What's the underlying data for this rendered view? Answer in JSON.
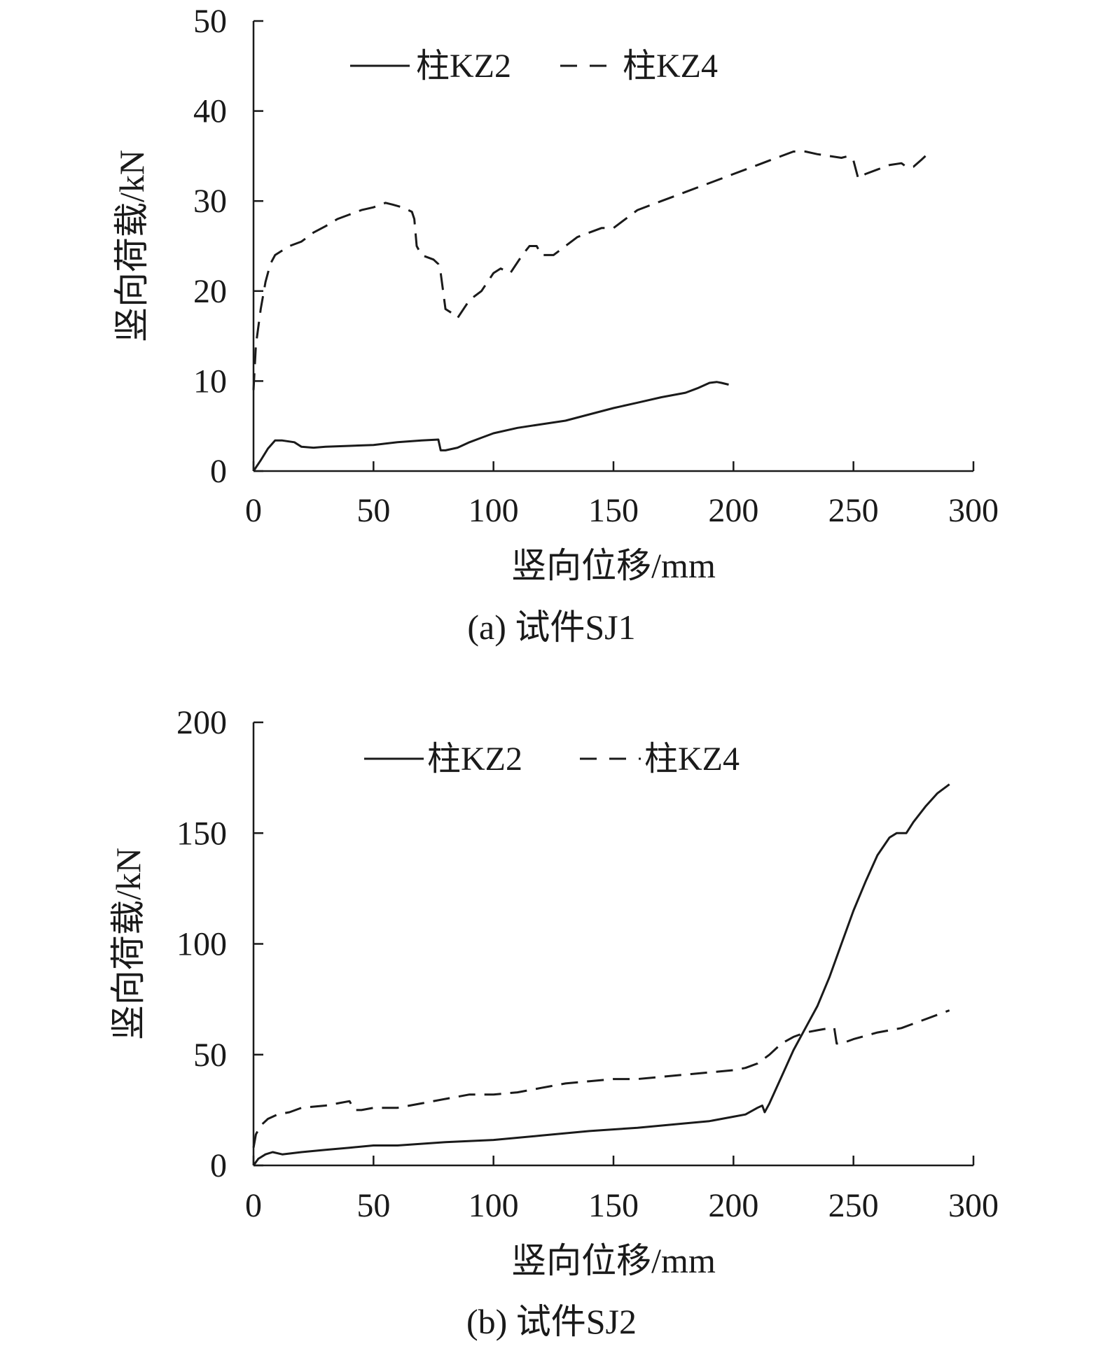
{
  "chart_data": [
    {
      "type": "line",
      "caption": "(a) 试件SJ1",
      "xlabel": "竖向位移/mm",
      "ylabel": "竖向荷载/kN",
      "xlim": [
        0,
        300
      ],
      "ylim": [
        0,
        50
      ],
      "xticks": [
        0,
        50,
        100,
        150,
        200,
        250,
        300
      ],
      "yticks": [
        0,
        10,
        20,
        30,
        40,
        50
      ],
      "legend_position": "top",
      "series": [
        {
          "name": "柱KZ2",
          "style": "solid",
          "color": "#1a1a1a",
          "x": [
            0,
            3,
            6,
            9,
            12,
            17,
            20,
            25,
            30,
            40,
            50,
            60,
            70,
            77,
            78,
            80,
            85,
            90,
            95,
            100,
            110,
            120,
            130,
            140,
            150,
            160,
            170,
            180,
            185,
            190,
            193,
            195,
            198
          ],
          "y": [
            0,
            1.2,
            2.5,
            3.4,
            3.4,
            3.2,
            2.7,
            2.6,
            2.7,
            2.8,
            2.9,
            3.2,
            3.4,
            3.5,
            2.3,
            2.3,
            2.6,
            3.2,
            3.7,
            4.2,
            4.8,
            5.2,
            5.6,
            6.3,
            7.0,
            7.6,
            8.2,
            8.7,
            9.2,
            9.8,
            9.9,
            9.8,
            9.6
          ]
        },
        {
          "name": "柱KZ4",
          "style": "dashed",
          "color": "#1a1a1a",
          "x": [
            0,
            1,
            3,
            5,
            7,
            9,
            12,
            15,
            20,
            25,
            30,
            35,
            40,
            45,
            50,
            55,
            58,
            62,
            66,
            67,
            68,
            70,
            75,
            77,
            78,
            80,
            83,
            85,
            90,
            95,
            100,
            103,
            107,
            112,
            115,
            118,
            120,
            125,
            130,
            135,
            140,
            145,
            150,
            155,
            160,
            165,
            170,
            175,
            180,
            185,
            190,
            195,
            200,
            205,
            210,
            215,
            220,
            225,
            230,
            235,
            240,
            245,
            248,
            250,
            252,
            255,
            260,
            265,
            270,
            272,
            275,
            278,
            280
          ],
          "y": [
            9,
            14,
            18,
            21,
            23,
            24,
            24.5,
            25,
            25.5,
            26.5,
            27.2,
            28,
            28.5,
            29,
            29.3,
            29.8,
            29.6,
            29.3,
            28.8,
            28,
            25,
            24,
            23.5,
            23,
            22,
            18,
            17.5,
            17,
            19,
            20,
            22,
            22.5,
            22,
            24,
            25,
            25,
            24,
            24,
            25,
            26,
            26.5,
            27,
            27,
            28,
            29,
            29.5,
            30,
            30.5,
            31,
            31.5,
            32,
            32.5,
            33,
            33.5,
            34,
            34.5,
            35,
            35.5,
            35.5,
            35.2,
            35,
            34.8,
            35,
            34.5,
            32.5,
            33,
            33.5,
            34,
            34.2,
            33.8,
            33.8,
            34.5,
            35
          ]
        }
      ]
    },
    {
      "type": "line",
      "caption": "(b) 试件SJ2",
      "xlabel": "竖向位移/mm",
      "ylabel": "竖向荷载/kN",
      "xlim": [
        0,
        300
      ],
      "ylim": [
        0,
        200
      ],
      "xticks": [
        0,
        50,
        100,
        150,
        200,
        250,
        300
      ],
      "yticks": [
        0,
        50,
        100,
        150,
        200
      ],
      "legend_position": "top",
      "series": [
        {
          "name": "柱KZ2",
          "style": "solid",
          "color": "#1a1a1a",
          "x": [
            0,
            2,
            5,
            8,
            12,
            20,
            30,
            40,
            50,
            60,
            80,
            100,
            120,
            140,
            160,
            180,
            190,
            200,
            205,
            210,
            212,
            213,
            215,
            220,
            225,
            230,
            235,
            240,
            245,
            250,
            255,
            260,
            265,
            268,
            272,
            275,
            280,
            285,
            290
          ],
          "y": [
            0,
            3,
            5,
            6,
            5,
            6,
            7,
            8,
            9,
            9,
            10.5,
            11.5,
            13.5,
            15.5,
            17,
            19,
            20,
            22,
            23,
            26,
            27,
            24,
            28,
            40,
            52,
            62,
            72,
            85,
            100,
            115,
            128,
            140,
            148,
            150,
            150,
            155,
            162,
            168,
            172
          ]
        },
        {
          "name": "柱KZ4",
          "style": "dashed",
          "color": "#1a1a1a",
          "x": [
            0,
            1,
            3,
            6,
            10,
            15,
            20,
            30,
            35,
            40,
            42,
            45,
            50,
            60,
            70,
            80,
            90,
            100,
            110,
            120,
            130,
            140,
            150,
            160,
            170,
            180,
            190,
            200,
            205,
            210,
            215,
            220,
            225,
            230,
            235,
            240,
            242,
            243,
            245,
            250,
            260,
            270,
            280,
            290
          ],
          "y": [
            8,
            14,
            18,
            21,
            23,
            24,
            26,
            27,
            28,
            29,
            25,
            25,
            26,
            26,
            28,
            30,
            32,
            32,
            33,
            35,
            37,
            38,
            39,
            39,
            40,
            41,
            42,
            43,
            44,
            46,
            50,
            55,
            58,
            60,
            61,
            62,
            62,
            55,
            55,
            57,
            60,
            62,
            66,
            70
          ]
        }
      ]
    }
  ]
}
